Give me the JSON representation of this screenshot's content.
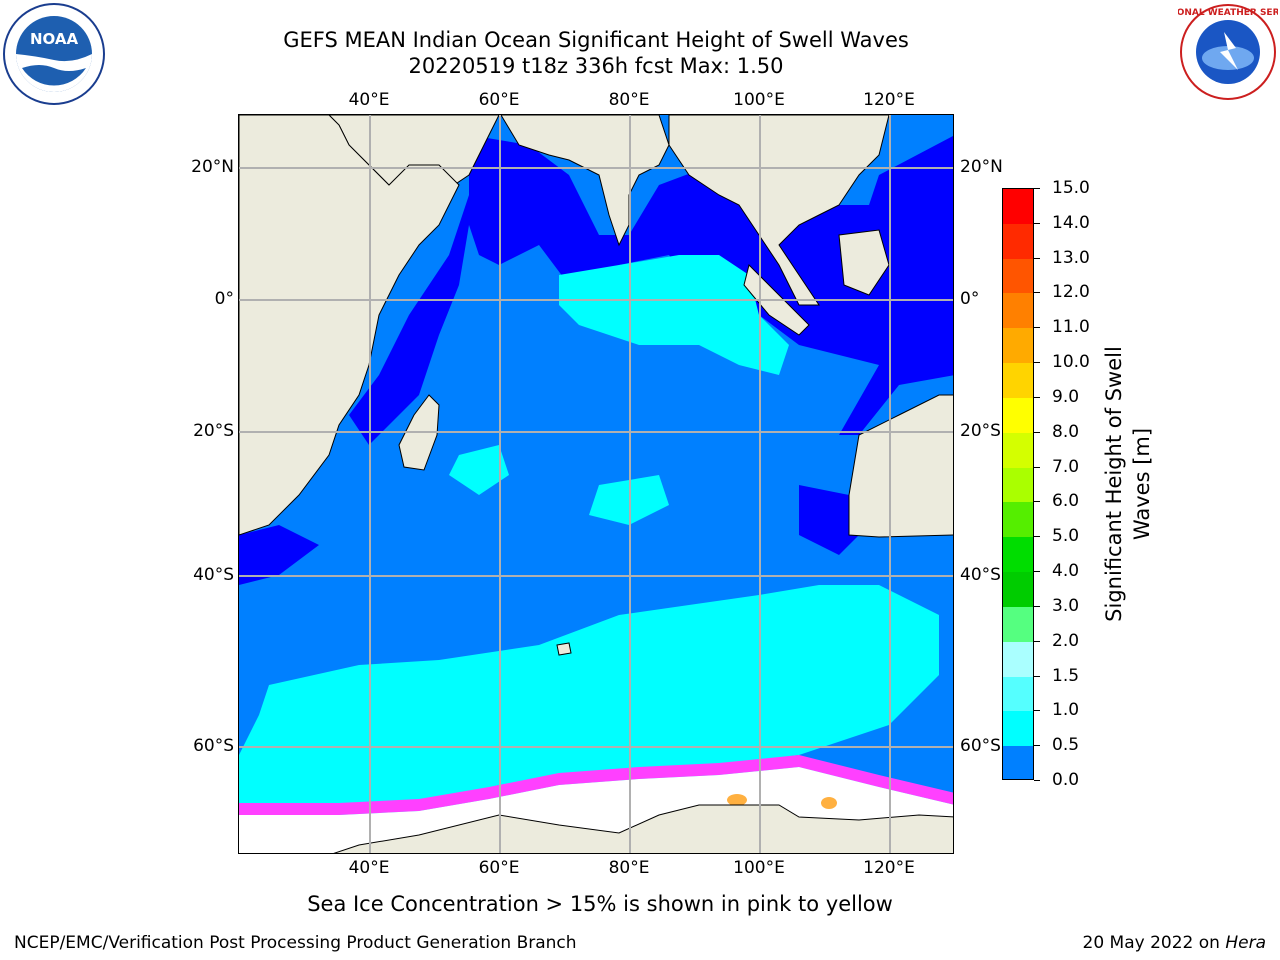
{
  "header": {
    "title_line1": "GEFS MEAN Indian Ocean Significant Height of Swell Waves",
    "title_line2": "20220519 t18z 336h fcst   Max: 1.50"
  },
  "logos": {
    "left": {
      "icon": "noaa-logo-icon",
      "text": "NOAA"
    },
    "right": {
      "icon": "nws-logo-icon",
      "text": "NATIONAL WEATHER SERVICE"
    }
  },
  "map": {
    "lon_labels": [
      "40°E",
      "60°E",
      "80°E",
      "100°E",
      "120°E"
    ],
    "lat_labels": [
      "20°N",
      "0°",
      "20°S",
      "40°S",
      "60°S"
    ],
    "colors": {
      "land": "#ecebdd",
      "ice": "#ffffff",
      "deep": "#0000ff",
      "mid": "#0080ff",
      "high": "#00ffff",
      "highest": "#40ffff",
      "ice_edge": "#ff40ff",
      "ice_orange": "#ffb040"
    }
  },
  "colorbar": {
    "title_line1": "Significant Height of Swell",
    "title_line2": "Waves [m]",
    "labels": [
      "15.0",
      "14.0",
      "13.0",
      "12.0",
      "11.0",
      "10.0",
      "9.0",
      "8.0",
      "7.0",
      "6.0",
      "5.0",
      "4.0",
      "3.0",
      "2.0",
      "1.5",
      "1.0",
      "0.5",
      "0.0"
    ],
    "colors": [
      "#ff0000",
      "#ff2a00",
      "#ff5500",
      "#ff8000",
      "#ffaa00",
      "#ffd400",
      "#ffff00",
      "#d4ff00",
      "#aaff00",
      "#55ee00",
      "#00dd00",
      "#00cc00",
      "#55ff80",
      "#aaffff",
      "#55ffff",
      "#00ffff",
      "#0080ff",
      "#0000ff"
    ]
  },
  "footer": {
    "note": "Sea Ice Concentration > 15% is shown in pink to yellow",
    "credit": "NCEP/EMC/Verification Post Processing Product Generation Branch",
    "date_prefix": "20 May 2022 on ",
    "date_machine": "Hera"
  }
}
